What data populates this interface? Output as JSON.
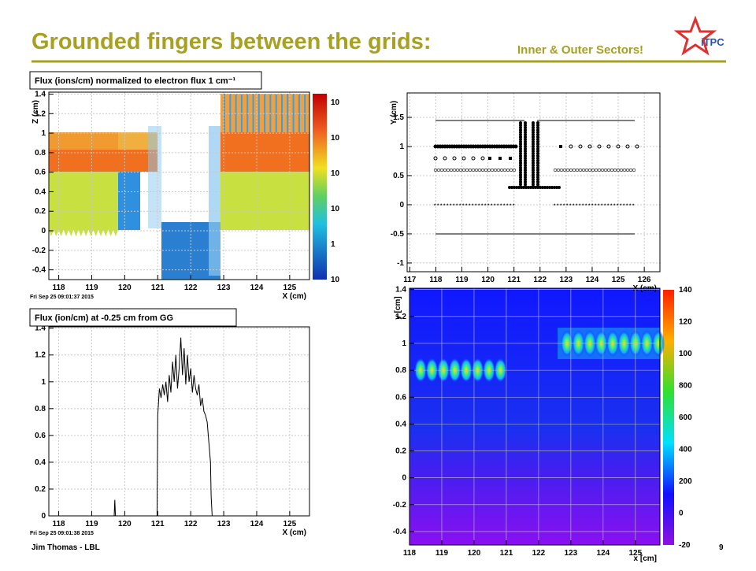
{
  "header": {
    "title": "Grounded fingers between the grids:",
    "subtitle": "Inner & Outer Sectors!",
    "logo": "iTPC"
  },
  "footer": {
    "author": "Jim Thomas - LBL",
    "page": "9"
  },
  "chart_data": [
    {
      "type": "heatmap",
      "title": "Flux (ions/cm) normalized to electron flux 1 cm⁻¹",
      "xlabel": "X (cm)",
      "ylabel": "Z (cm)",
      "xlim": [
        117.7,
        125.6
      ],
      "ylim": [
        -0.5,
        1.42
      ],
      "xticks": [
        118,
        119,
        120,
        121,
        122,
        123,
        124,
        125
      ],
      "yticks": [
        -0.4,
        -0.2,
        0,
        0.2,
        0.4,
        0.6,
        0.8,
        1,
        1.2,
        1.4
      ],
      "grid": true,
      "colorbar_labels": [
        "10",
        "10",
        "10",
        "10",
        "1",
        "10"
      ],
      "timestamp": "Fri Sep 25 09:01:37 2015"
    },
    {
      "type": "scatter",
      "xlabel": "X (cm)",
      "ylabel": "Y (cm)",
      "xlim": [
        116.9,
        126.6
      ],
      "ylim": [
        -1.15,
        1.92
      ],
      "xticks": [
        117,
        118,
        119,
        120,
        121,
        122,
        123,
        124,
        125,
        126
      ],
      "yticks": [
        -1,
        -0.5,
        0,
        0.5,
        1,
        1.5
      ],
      "grid": true
    },
    {
      "type": "line",
      "title": "Flux (ion/cm) at -0.25 cm from GG",
      "xlabel": "X (cm)",
      "xlim": [
        117.7,
        125.6
      ],
      "ylim": [
        0,
        1.41
      ],
      "xticks": [
        118,
        119,
        120,
        121,
        122,
        123,
        124,
        125
      ],
      "yticks": [
        0,
        0.2,
        0.4,
        0.6,
        0.8,
        1,
        1.2,
        1.4
      ],
      "grid": true,
      "color": "#000000",
      "x": [
        117.8,
        119.68,
        119.7,
        119.72,
        120.98,
        121.0,
        121.05,
        121.1,
        121.15,
        121.2,
        121.25,
        121.3,
        121.35,
        121.4,
        121.45,
        121.5,
        121.55,
        121.6,
        121.65,
        121.7,
        121.75,
        121.8,
        121.85,
        121.9,
        121.95,
        122.0,
        122.05,
        122.1,
        122.15,
        122.2,
        122.25,
        122.3,
        122.35,
        122.4,
        122.45,
        122.5,
        122.55,
        122.6,
        122.62,
        122.65,
        125.6
      ],
      "values": [
        0,
        0,
        0.12,
        0,
        0,
        0.75,
        0.95,
        0.88,
        0.98,
        0.9,
        1.0,
        0.85,
        1.05,
        0.92,
        1.15,
        1.0,
        1.2,
        0.95,
        1.1,
        1.33,
        1.05,
        1.25,
        0.98,
        1.2,
        1.0,
        1.1,
        0.92,
        1.05,
        0.95,
        0.9,
        0.98,
        0.82,
        0.88,
        0.78,
        0.75,
        0.7,
        0.55,
        0.4,
        0.15,
        0,
        0
      ],
      "timestamp": "Fri Sep 25 09:01:38 2015"
    },
    {
      "type": "heatmap",
      "xlabel": "x [cm]",
      "ylabel": "y [cm]",
      "xlim": [
        118,
        125.76
      ],
      "ylim": [
        -0.5,
        1.41
      ],
      "xticks": [
        118,
        119,
        120,
        121,
        122,
        123,
        124,
        125
      ],
      "yticks": [
        -0.4,
        -0.2,
        0,
        0.2,
        0.4,
        0.6,
        0.8,
        1,
        1.2,
        1.4
      ],
      "grid": true,
      "colorbar_labels": [
        "140",
        "120",
        "100",
        "800",
        "600",
        "400",
        "200",
        "0",
        "-20"
      ]
    }
  ]
}
